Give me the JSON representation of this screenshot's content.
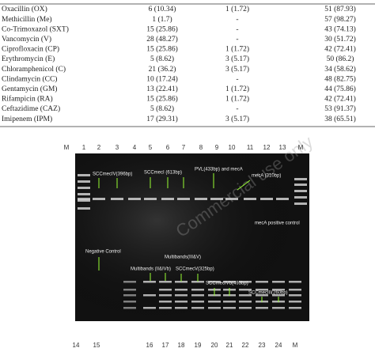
{
  "table": {
    "rows": [
      [
        "Oxacillin (OX)",
        "6 (10.34)",
        "1 (1.72)",
        "51 (87.93)"
      ],
      [
        "Methicillin (Me)",
        "1 (1.7)",
        "-",
        "57 (98.27)"
      ],
      [
        "Co-Trimoxazol (SXT)",
        "15 (25.86)",
        "-",
        "43 (74.13)"
      ],
      [
        "Vancomycin (V)",
        "28 (48.27)",
        "-",
        "30 (51.72)"
      ],
      [
        "Ciprofloxacin (CP)",
        "15 (25.86)",
        "1 (1.72)",
        "42 (72.41)"
      ],
      [
        "Erythromycin (E)",
        "5 (8.62)",
        "3 (5.17)",
        "50 (86.2)"
      ],
      [
        "Chloramphenicol (C)",
        "21 (36.2)",
        "3 (5.17)",
        "34 (58.62)"
      ],
      [
        "Clindamycin (CC)",
        "10 (17.24)",
        "-",
        "48 (82.75)"
      ],
      [
        "Gentamycin (GM)",
        "13 (22.41)",
        "1 (1.72)",
        "44 (75.86)"
      ],
      [
        "Rifampicin (RA)",
        "15 (25.86)",
        "1 (1.72)",
        "42 (72.41)"
      ],
      [
        "Ceftazidime (CAZ)",
        "5 (8.62)",
        "-",
        "53 (91.37)"
      ],
      [
        "Imipenem (IPM)",
        "17 (29.31)",
        "3 (5.17)",
        "38 (65.51)"
      ]
    ]
  },
  "watermark": "Commercial use only",
  "gel": {
    "top_lanes": [
      "M",
      "1",
      "2",
      "3",
      "4",
      "5",
      "6",
      "7",
      "8",
      "9",
      "10",
      "11",
      "12",
      "13",
      "M"
    ],
    "bottom_lanes": [
      "14",
      "15",
      "16",
      "17",
      "18",
      "19",
      "20",
      "21",
      "22",
      "23",
      "24",
      "M"
    ],
    "annotations": [
      "SCCmecIV(396bp)",
      "SCCmecI (613bp)",
      "PVL(433bp) and mecA",
      "mecA (310bp)",
      "mecA positive control",
      "Negative Control",
      "Multibands(III&V)",
      "Multibands (II&IVb)",
      "SCCmecV(325bp)",
      "SCCmecIVb(493bp)",
      "SCCmecIII(260bp)"
    ]
  }
}
